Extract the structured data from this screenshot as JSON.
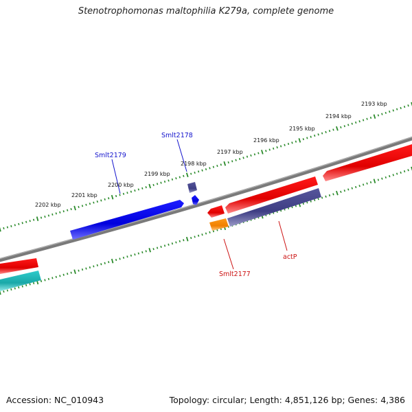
{
  "title": "Stenotrophomonas maltophilia K279a, complete genome",
  "footer": {
    "accession": "Accession: NC_010943",
    "summary": "Topology: circular; Length: 4,851,126 bp; Genes: 4,386"
  },
  "scale_labels": [
    "2193 kbp",
    "2194 kbp",
    "2195 kbp",
    "2196 kbp",
    "2197 kbp",
    "2198 kbp",
    "2199 kbp",
    "2200 kbp",
    "2201 kbp",
    "2202 kbp"
  ],
  "gene_labels": {
    "smlt2179": "Smlt2179",
    "smlt2178": "Smlt2178",
    "smlt2177": "Smlt2177",
    "actP": "actP"
  },
  "colors": {
    "backbone": "#888888",
    "scale_ticks": "#2a8a2a",
    "forward_label": "#1111cc",
    "reverse_label": "#cc1111",
    "gene_blue": "#0000ee",
    "gene_slate": "#444488",
    "gene_red": "#ee0000",
    "gene_orange": "#ff8800",
    "gene_cyan": "#22bbbb"
  }
}
